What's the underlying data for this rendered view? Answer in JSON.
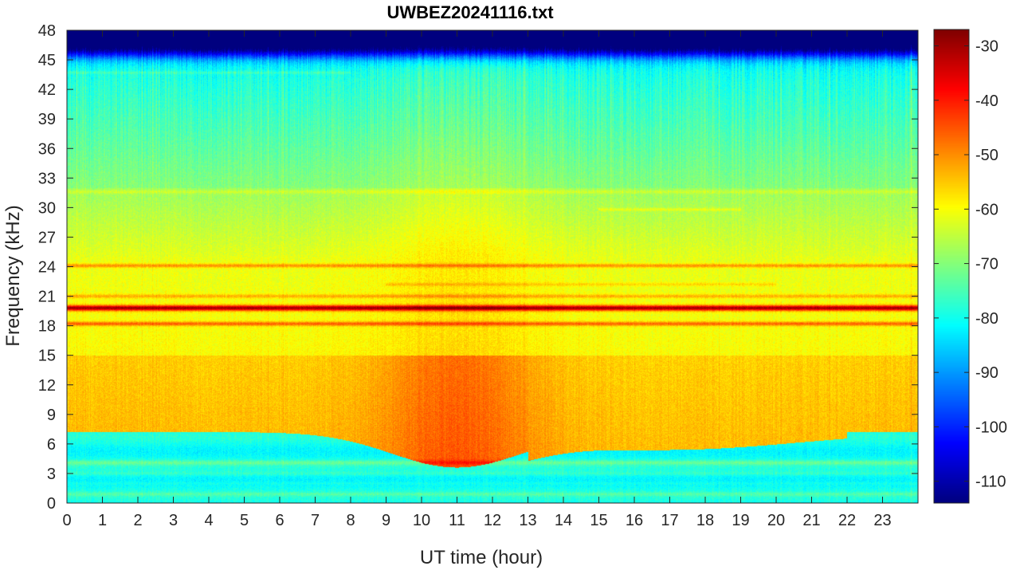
{
  "chart_data": {
    "type": "heatmap",
    "title": "UWBEZ20241116.txt",
    "xlabel": "UT time (hour)",
    "ylabel": "Frequency (kHz)",
    "xlim": [
      0,
      24
    ],
    "ylim": [
      0,
      48
    ],
    "x_ticks": [
      "0",
      "1",
      "2",
      "3",
      "4",
      "5",
      "6",
      "7",
      "8",
      "9",
      "10",
      "11",
      "12",
      "13",
      "14",
      "15",
      "16",
      "17",
      "18",
      "19",
      "20",
      "21",
      "22",
      "23"
    ],
    "y_ticks": [
      "0",
      "3",
      "6",
      "9",
      "12",
      "15",
      "18",
      "21",
      "24",
      "27",
      "30",
      "33",
      "36",
      "39",
      "42",
      "45",
      "48"
    ],
    "colorbar": {
      "colormap": "jet",
      "clim": [
        -114,
        -27
      ],
      "ticks": [
        "-30",
        "-40",
        "-50",
        "-60",
        "-70",
        "-80",
        "-90",
        "-100",
        "-110"
      ]
    },
    "features": {
      "strong_lines_khz": [
        19.8,
        18.2,
        24.1,
        21.0
      ],
      "weak_lines_khz": [
        22.2,
        29.8,
        31.6,
        43.7,
        4.1,
        3.0
      ],
      "max_intensity_window_hours": [
        9,
        13
      ],
      "max_intensity_band_khz": [
        4,
        14
      ],
      "high_frequency_cutoff_khz": 45
    }
  }
}
